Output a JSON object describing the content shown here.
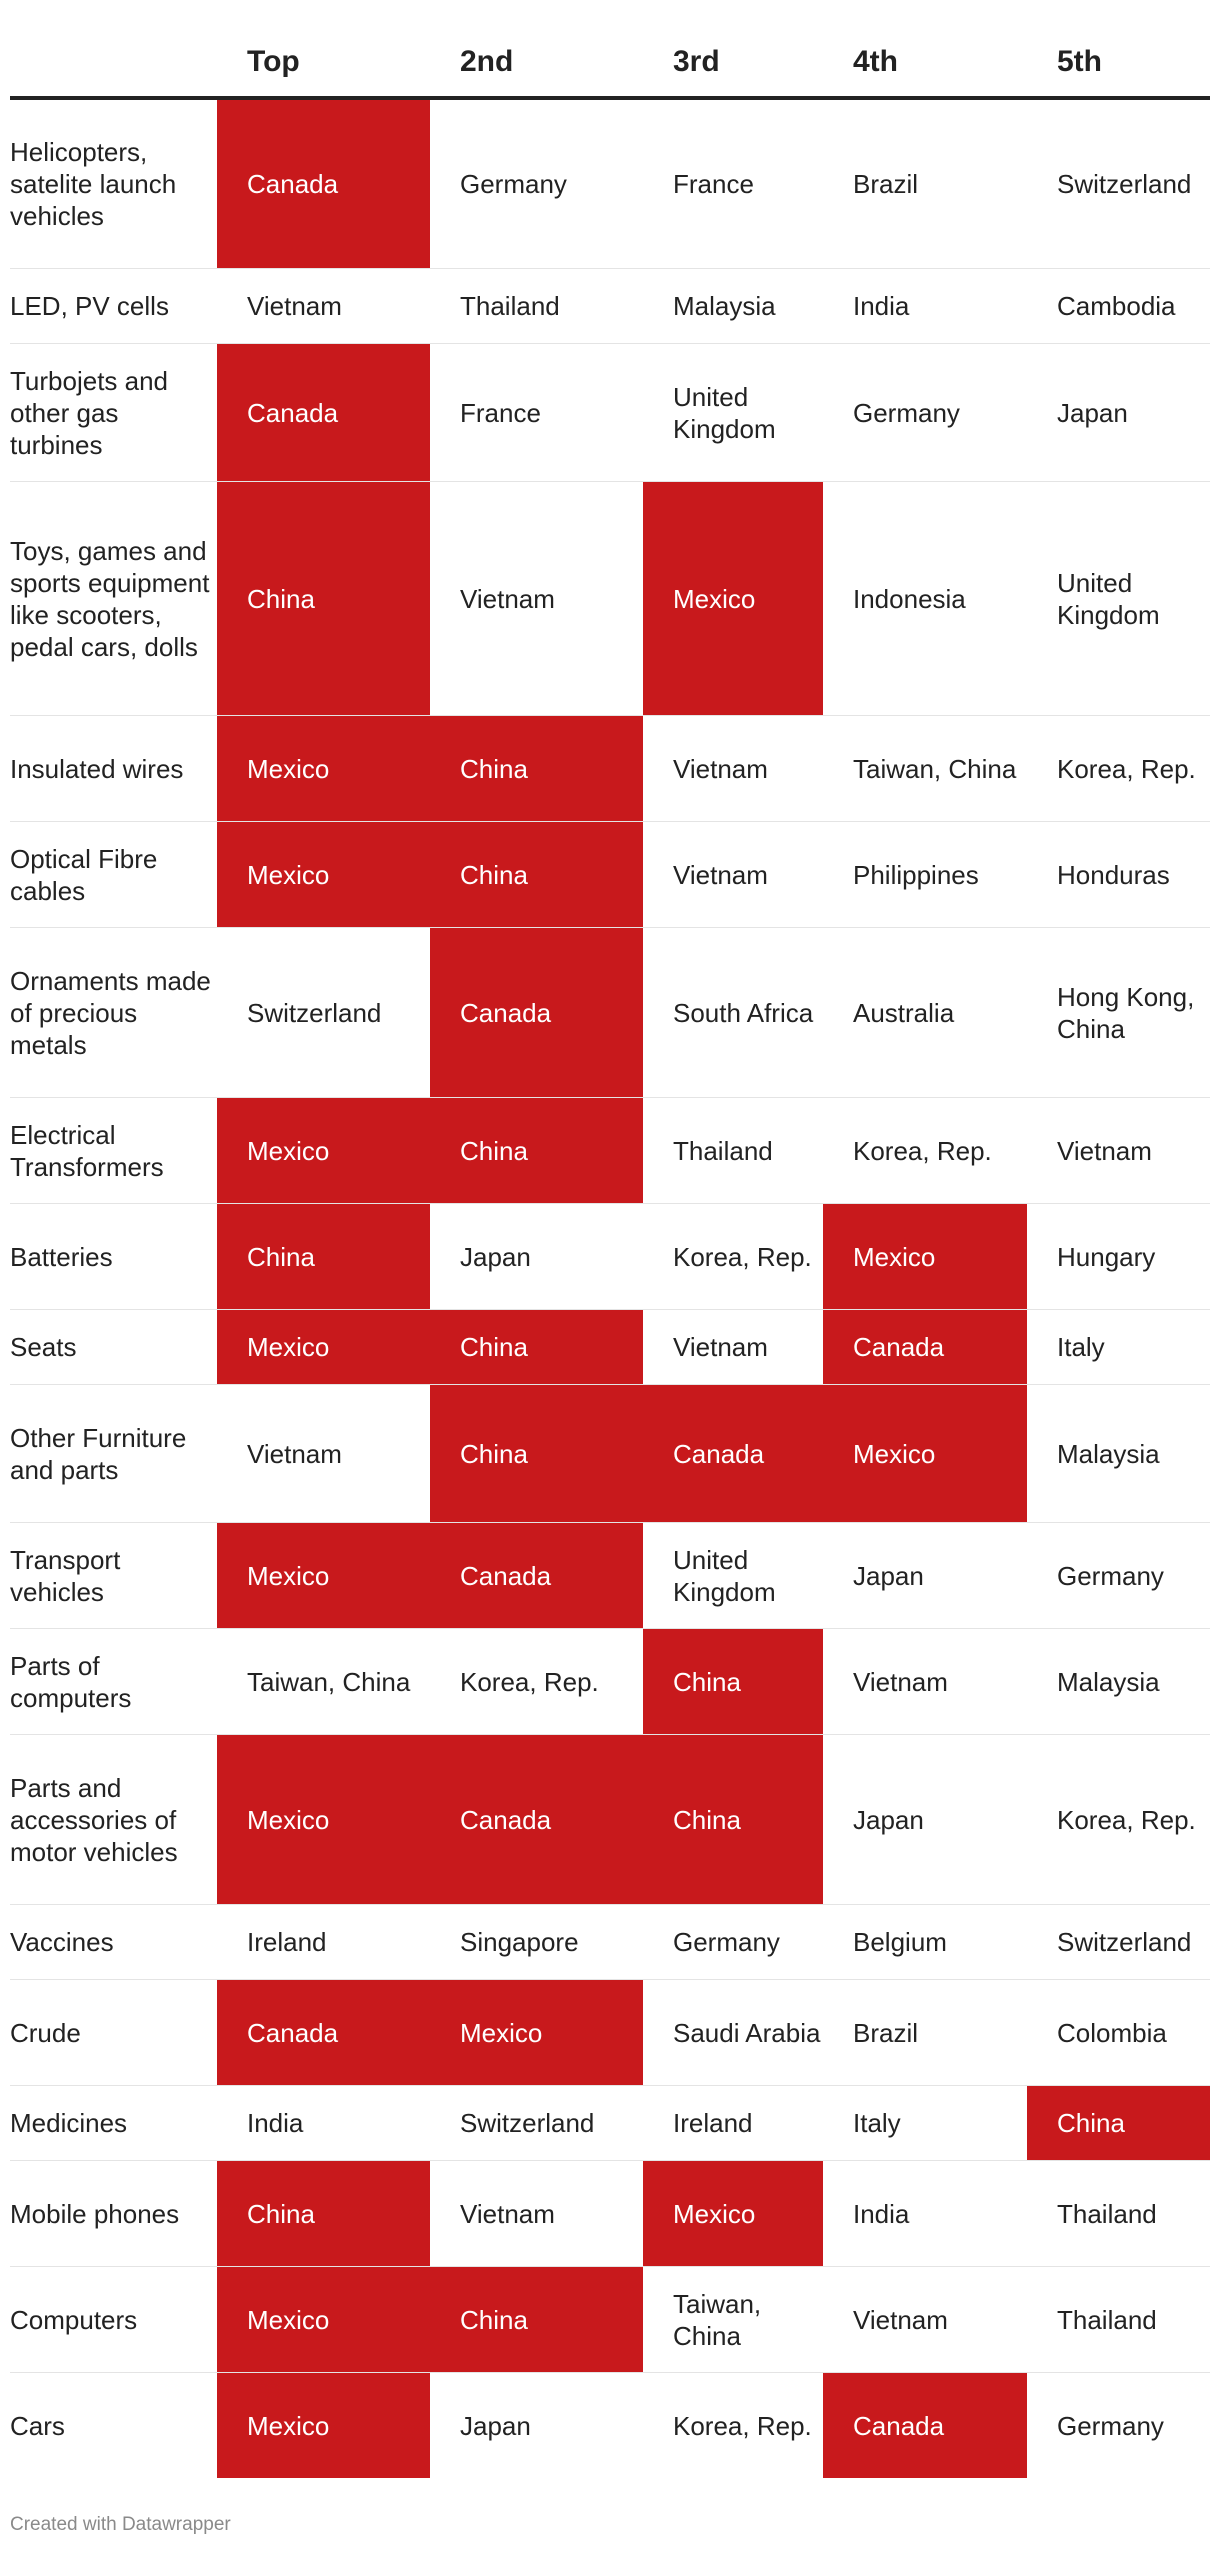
{
  "chart_data": {
    "type": "table",
    "highlight_color": "#c8191c",
    "highlight_value": "China, Mexico, Canada",
    "columns": [
      "",
      "Top",
      "2nd",
      "3rd",
      "4th",
      "5th"
    ],
    "rows": [
      {
        "product": "Helicopters, satelite launch vehicles",
        "values": [
          "Canada",
          "Germany",
          "France",
          "Brazil",
          "Switzerland"
        ],
        "highlight": [
          true,
          false,
          false,
          false,
          false
        ]
      },
      {
        "product": "LED, PV cells",
        "values": [
          "Vietnam",
          "Thailand",
          "Malaysia",
          "India",
          "Cambodia"
        ],
        "highlight": [
          false,
          false,
          false,
          false,
          false
        ]
      },
      {
        "product": "Turbojets and other gas turbines",
        "values": [
          "Canada",
          "France",
          "United Kingdom",
          "Germany",
          "Japan"
        ],
        "highlight": [
          true,
          false,
          false,
          false,
          false
        ]
      },
      {
        "product": "Toys, games and sports equipment like scooters, pedal cars, dolls",
        "values": [
          "China",
          "Vietnam",
          "Mexico",
          "Indonesia",
          "United Kingdom"
        ],
        "highlight": [
          true,
          false,
          true,
          false,
          false
        ]
      },
      {
        "product": "Insulated wires",
        "values": [
          "Mexico",
          "China",
          "Vietnam",
          "Taiwan, China",
          "Korea, Rep."
        ],
        "highlight": [
          true,
          true,
          false,
          false,
          false
        ]
      },
      {
        "product": "Optical Fibre cables",
        "values": [
          "Mexico",
          "China",
          "Vietnam",
          "Philippines",
          "Honduras"
        ],
        "highlight": [
          true,
          true,
          false,
          false,
          false
        ]
      },
      {
        "product": "Ornaments made of precious metals",
        "values": [
          "Switzerland",
          "Canada",
          "South Africa",
          "Australia",
          "Hong Kong, China"
        ],
        "highlight": [
          false,
          true,
          false,
          false,
          false
        ]
      },
      {
        "product": "Electrical Transformers",
        "values": [
          "Mexico",
          "China",
          "Thailand",
          "Korea, Rep.",
          "Vietnam"
        ],
        "highlight": [
          true,
          true,
          false,
          false,
          false
        ]
      },
      {
        "product": "Batteries",
        "values": [
          "China",
          "Japan",
          "Korea, Rep.",
          "Mexico",
          "Hungary"
        ],
        "highlight": [
          true,
          false,
          false,
          true,
          false
        ]
      },
      {
        "product": "Seats",
        "values": [
          "Mexico",
          "China",
          "Vietnam",
          "Canada",
          "Italy"
        ],
        "highlight": [
          true,
          true,
          false,
          true,
          false
        ]
      },
      {
        "product": "Other Furniture and parts",
        "values": [
          "Vietnam",
          "China",
          "Canada",
          "Mexico",
          "Malaysia"
        ],
        "highlight": [
          false,
          true,
          true,
          true,
          false
        ]
      },
      {
        "product": "Transport vehicles",
        "values": [
          "Mexico",
          "Canada",
          "United Kingdom",
          "Japan",
          "Germany"
        ],
        "highlight": [
          true,
          true,
          false,
          false,
          false
        ]
      },
      {
        "product": "Parts of computers",
        "values": [
          "Taiwan, China",
          "Korea, Rep.",
          "China",
          "Vietnam",
          "Malaysia"
        ],
        "highlight": [
          false,
          false,
          true,
          false,
          false
        ]
      },
      {
        "product": "Parts and accessories of motor vehicles",
        "values": [
          "Mexico",
          "Canada",
          "China",
          "Japan",
          "Korea, Rep."
        ],
        "highlight": [
          true,
          true,
          true,
          false,
          false
        ]
      },
      {
        "product": "Vaccines",
        "values": [
          "Ireland",
          "Singapore",
          "Germany",
          "Belgium",
          "Switzerland"
        ],
        "highlight": [
          false,
          false,
          false,
          false,
          false
        ]
      },
      {
        "product": "Crude",
        "values": [
          "Canada",
          "Mexico",
          "Saudi Arabia",
          "Brazil",
          "Colombia"
        ],
        "highlight": [
          true,
          true,
          false,
          false,
          false
        ]
      },
      {
        "product": "Medicines",
        "values": [
          "India",
          "Switzerland",
          "Ireland",
          "Italy",
          "China"
        ],
        "highlight": [
          false,
          false,
          false,
          false,
          true
        ]
      },
      {
        "product": "Mobile phones",
        "values": [
          "China",
          "Vietnam",
          "Mexico",
          "India",
          "Thailand"
        ],
        "highlight": [
          true,
          false,
          true,
          false,
          false
        ]
      },
      {
        "product": "Computers",
        "values": [
          "Mexico",
          "China",
          "Taiwan, China",
          "Vietnam",
          "Thailand"
        ],
        "highlight": [
          true,
          true,
          false,
          false,
          false
        ]
      },
      {
        "product": "Cars",
        "values": [
          "Mexico",
          "Japan",
          "Korea, Rep.",
          "Canada",
          "Germany"
        ],
        "highlight": [
          true,
          false,
          false,
          true,
          false
        ]
      }
    ]
  },
  "footer": "Created with Datawrapper"
}
